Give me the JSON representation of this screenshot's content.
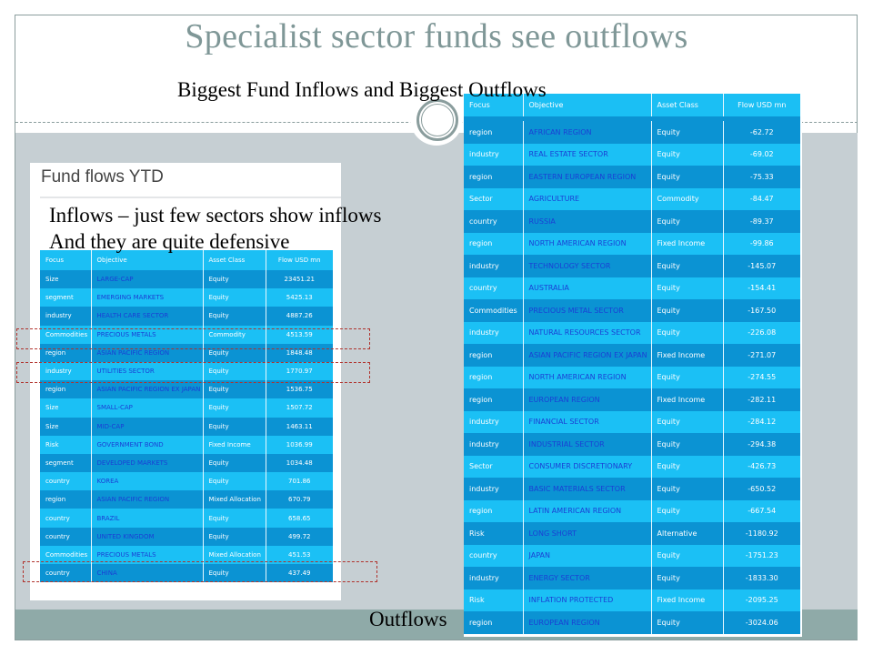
{
  "slide": {
    "title": "Specialist sector funds see outflows",
    "subtitle": "Biggest Fund Inflows and Biggest Outflows",
    "outflows_label": "Outflows"
  },
  "inflows_panel": {
    "title": "Fund flows YTD",
    "note_line1": "Inflows – just few sectors show inflows",
    "note_line2": "And they are quite defensive",
    "columns": [
      "Focus",
      "Objective",
      "Asset Class",
      "Flow USD mn"
    ],
    "rows": [
      [
        "Size",
        "LARGE-CAP",
        "Equity",
        "23451.21"
      ],
      [
        "segment",
        "EMERGING MARKETS",
        "Equity",
        "5425.13"
      ],
      [
        "industry",
        "HEALTH CARE SECTOR",
        "Equity",
        "4887.26"
      ],
      [
        "Commodities",
        "PRECIOUS METALS",
        "Commodity",
        "4513.59"
      ],
      [
        "region",
        "ASIAN PACIFIC REGION",
        "Equity",
        "1848.48"
      ],
      [
        "industry",
        "UTILITIES SECTOR",
        "Equity",
        "1770.97"
      ],
      [
        "region",
        "ASIAN PACIFIC REGION EX JAPAN",
        "Equity",
        "1536.75"
      ],
      [
        "Size",
        "SMALL-CAP",
        "Equity",
        "1507.72"
      ],
      [
        "Size",
        "MID-CAP",
        "Equity",
        "1463.11"
      ],
      [
        "Risk",
        "GOVERNMENT BOND",
        "Fixed Income",
        "1036.99"
      ],
      [
        "segment",
        "DEVELOPED MARKETS",
        "Equity",
        "1034.48"
      ],
      [
        "country",
        "KOREA",
        "Equity",
        "701.86"
      ],
      [
        "region",
        "ASIAN PACIFIC REGION",
        "Mixed Allocation",
        "670.79"
      ],
      [
        "country",
        "BRAZIL",
        "Equity",
        "658.65"
      ],
      [
        "country",
        "UNITED KINGDOM",
        "Equity",
        "499.72"
      ],
      [
        "Commodities",
        "PRECIOUS METALS",
        "Mixed Allocation",
        "451.53"
      ],
      [
        "country",
        "CHINA",
        "Equity",
        "437.49"
      ]
    ]
  },
  "outflows_table": {
    "columns": [
      "Focus",
      "Objective",
      "Asset Class",
      "Flow USD mn"
    ],
    "rows": [
      [
        "region",
        "AFRICAN REGION",
        "Equity",
        "-62.72"
      ],
      [
        "industry",
        "REAL ESTATE SECTOR",
        "Equity",
        "-69.02"
      ],
      [
        "region",
        "EASTERN EUROPEAN REGION",
        "Equity",
        "-75.33"
      ],
      [
        "Sector",
        "AGRICULTURE",
        "Commodity",
        "-84.47"
      ],
      [
        "country",
        "RUSSIA",
        "Equity",
        "-89.37"
      ],
      [
        "region",
        "NORTH AMERICAN REGION",
        "Fixed Income",
        "-99.86"
      ],
      [
        "industry",
        "TECHNOLOGY SECTOR",
        "Equity",
        "-145.07"
      ],
      [
        "country",
        "AUSTRALIA",
        "Equity",
        "-154.41"
      ],
      [
        "Commodities",
        "PRECIOUS METAL SECTOR",
        "Equity",
        "-167.50"
      ],
      [
        "industry",
        "NATURAL RESOURCES SECTOR",
        "Equity",
        "-226.08"
      ],
      [
        "region",
        "ASIAN PACIFIC REGION EX JAPAN",
        "Fixed Income",
        "-271.07"
      ],
      [
        "region",
        "NORTH AMERICAN REGION",
        "Equity",
        "-274.55"
      ],
      [
        "region",
        "EUROPEAN REGION",
        "Fixed Income",
        "-282.11"
      ],
      [
        "industry",
        "FINANCIAL SECTOR",
        "Equity",
        "-284.12"
      ],
      [
        "industry",
        "INDUSTRIAL SECTOR",
        "Equity",
        "-294.38"
      ],
      [
        "Sector",
        "CONSUMER DISCRETIONARY",
        "Equity",
        "-426.73"
      ],
      [
        "industry",
        "BASIC MATERIALS SECTOR",
        "Equity",
        "-650.52"
      ],
      [
        "region",
        "LATIN AMERICAN REGION",
        "Equity",
        "-667.54"
      ],
      [
        "Risk",
        "LONG SHORT",
        "Alternative",
        "-1180.92"
      ],
      [
        "country",
        "JAPAN",
        "Equity",
        "-1751.23"
      ],
      [
        "industry",
        "ENERGY SECTOR",
        "Equity",
        "-1833.30"
      ],
      [
        "Risk",
        "INFLATION PROTECTED",
        "Fixed Income",
        "-2095.25"
      ],
      [
        "region",
        "EUROPEAN REGION",
        "Equity",
        "-3024.06"
      ]
    ]
  }
}
